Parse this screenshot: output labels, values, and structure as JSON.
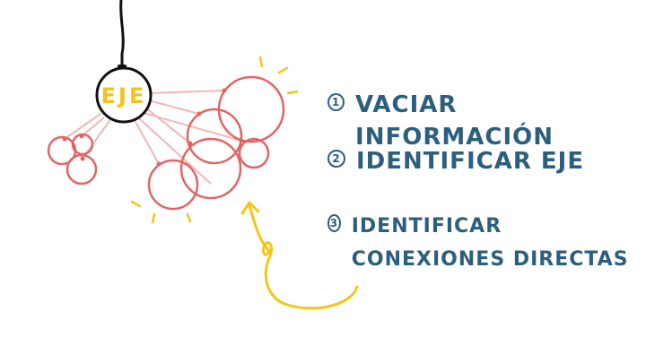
{
  "hub": {
    "label": "EJE"
  },
  "steps": [
    {
      "number": "1",
      "text": "VACIAR INFORMACIÓN"
    },
    {
      "number": "2",
      "text": "IDENTIFICAR EJE"
    },
    {
      "number": "3",
      "text": "IDENTIFICAR CONEXIONES DIRECTAS"
    }
  ],
  "colors": {
    "text": "#2c5f7e",
    "circles": "#e06666",
    "connectors": "#f2b6b6",
    "hub_label": "#f0c419",
    "accent_arrow": "#f5c518",
    "cable": "#111111"
  }
}
